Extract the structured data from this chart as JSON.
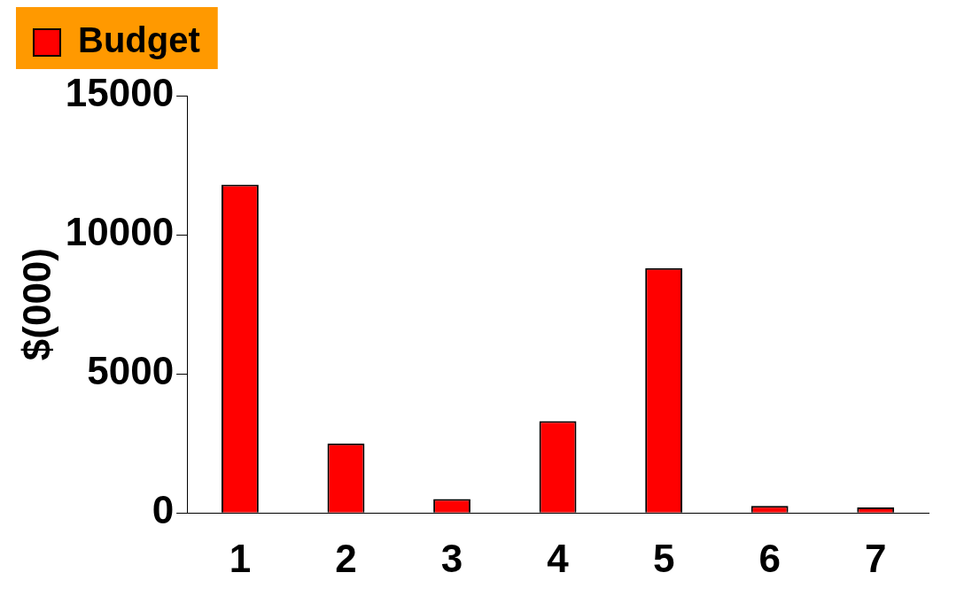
{
  "chart_data": {
    "type": "bar",
    "ylabel": "$(000)",
    "categories": [
      "1",
      "2",
      "3",
      "4",
      "5",
      "6",
      "7"
    ],
    "series": [
      {
        "name": "Budget",
        "color": "#ff0000",
        "values": [
          11800,
          2500,
          500,
          3300,
          8800,
          250,
          200
        ]
      }
    ],
    "ylim": [
      0,
      15000
    ],
    "yticks": [
      0,
      5000,
      10000,
      15000
    ],
    "grid": false,
    "legend": "top left"
  }
}
